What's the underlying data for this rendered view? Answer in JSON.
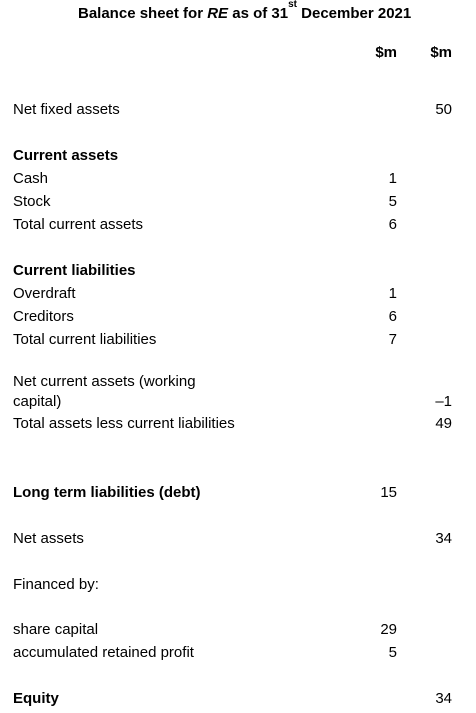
{
  "title": {
    "prefix": "Balance sheet for ",
    "entity": "RE",
    "middle": " as of 31",
    "sup": "st",
    "suffix": " December 2021"
  },
  "columns": {
    "col1": "$m",
    "col2": "$m"
  },
  "rows": {
    "net_fixed_assets": {
      "label": "Net fixed assets",
      "col2": "50"
    },
    "current_assets_heading": "Current assets",
    "cash": {
      "label": "Cash",
      "col1": "1"
    },
    "stock": {
      "label": "Stock",
      "col1": "5"
    },
    "total_current_assets": {
      "label": "Total current assets",
      "col1": "6"
    },
    "current_liabilities_heading": "Current liabilities",
    "overdraft": {
      "label": "Overdraft",
      "col1": "1"
    },
    "creditors": {
      "label": "Creditors",
      "col1": "6"
    },
    "total_current_liabilities": {
      "label": "Total current liabilities",
      "col1": "7"
    },
    "net_current_assets": {
      "label_line1": "Net current assets (working",
      "label_line2": "capital)",
      "col2": "–1"
    },
    "total_assets_less_cl": {
      "label": "Total assets less current liabilities",
      "col2": "49"
    },
    "long_term_liabilities": {
      "label": "Long term liabilities (debt)",
      "col1": "15"
    },
    "net_assets": {
      "label": "Net assets",
      "col2": "34"
    },
    "financed_by": "Financed by:",
    "share_capital": {
      "label": "share capital",
      "col1": "29"
    },
    "retained_profit": {
      "label": "accumulated retained profit",
      "col1": "5"
    },
    "equity": {
      "label": "Equity",
      "col2": "34"
    }
  }
}
